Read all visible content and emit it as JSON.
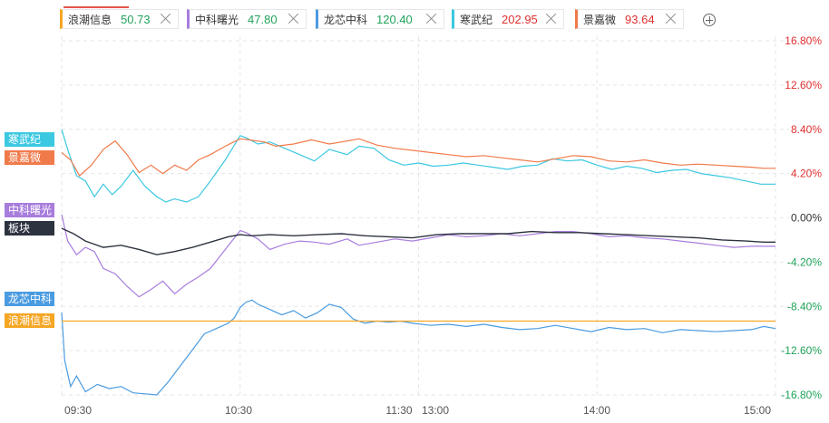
{
  "legend": [
    {
      "name": "浪潮信息",
      "price": "50.73",
      "color": "#f5a623",
      "price_color": "#20a35a"
    },
    {
      "name": "中科曙光",
      "price": "47.80",
      "color": "#a87ddd",
      "price_color": "#20a35a"
    },
    {
      "name": "龙芯中科",
      "price": "120.40",
      "color": "#4a9be0",
      "price_color": "#20a35a"
    },
    {
      "name": "寒武纪",
      "price": "202.95",
      "color": "#3bc8e0",
      "price_color": "#e03030"
    },
    {
      "name": "景嘉微",
      "price": "93.64",
      "color": "#f07a4a",
      "price_color": "#e03030"
    }
  ],
  "add_icon": "plus-circle-icon",
  "close_icon": "close-icon",
  "tags": [
    {
      "label": "寒武纪",
      "color": "#3bc8e0"
    },
    {
      "label": "景嘉微",
      "color": "#f07a4a"
    },
    {
      "label": "中科曙光",
      "color": "#a87ddd"
    },
    {
      "label": "板块",
      "color": "#2e3340"
    },
    {
      "label": "龙芯中科",
      "color": "#4a9be0"
    },
    {
      "label": "浪潮信息",
      "color": "#f5a623"
    }
  ],
  "chart_data": {
    "type": "line",
    "x_ticks": [
      "09:30",
      "10:30",
      "11:30",
      "13:00",
      "14:00",
      "15:00"
    ],
    "y_ticks": [
      "16.80%",
      "12.60%",
      "8.40%",
      "4.20%",
      "0.00%",
      "-4.20%",
      "-8.40%",
      "-12.60%",
      "-16.80%"
    ],
    "y_tick_colors": [
      "#e03030",
      "#e03030",
      "#e03030",
      "#e03030",
      "#333333",
      "#20a35a",
      "#20a35a",
      "#20a35a",
      "#20a35a"
    ],
    "ylim": [
      -16.8,
      16.8
    ],
    "x_unit": "trading minutes since 09:30 (0-240)",
    "series": [
      {
        "name": "寒武纪",
        "color": "#3bc8e0",
        "x": [
          0,
          2,
          5,
          8,
          11,
          14,
          17,
          20,
          24,
          28,
          32,
          35,
          38,
          42,
          46,
          50,
          55,
          60,
          62,
          66,
          70,
          75,
          80,
          85,
          90,
          96,
          100,
          105,
          110,
          115,
          120,
          125,
          130,
          135,
          140,
          145,
          150,
          155,
          160,
          165,
          170,
          175,
          180,
          185,
          190,
          195,
          200,
          205,
          210,
          215,
          220,
          225,
          230,
          235,
          240
        ],
        "y": [
          8.4,
          6.5,
          4.0,
          3.5,
          2.0,
          3.2,
          2.2,
          3.0,
          4.5,
          3.0,
          2.0,
          1.5,
          1.8,
          1.5,
          2.0,
          3.5,
          5.5,
          7.8,
          7.6,
          7.0,
          7.2,
          6.6,
          6.0,
          5.4,
          6.5,
          6.0,
          6.8,
          6.6,
          5.5,
          5.0,
          5.2,
          4.9,
          5.0,
          5.2,
          5.0,
          4.8,
          4.6,
          4.9,
          5.0,
          5.6,
          5.4,
          5.5,
          5.0,
          4.6,
          4.9,
          4.7,
          4.3,
          4.5,
          4.6,
          4.2,
          4.0,
          3.8,
          3.5,
          3.2,
          3.2
        ]
      },
      {
        "name": "景嘉微",
        "color": "#f07a4a",
        "x": [
          0,
          3,
          6,
          10,
          14,
          18,
          22,
          26,
          30,
          34,
          38,
          42,
          46,
          50,
          55,
          60,
          63,
          68,
          72,
          78,
          84,
          90,
          96,
          100,
          106,
          112,
          118,
          124,
          130,
          136,
          142,
          148,
          154,
          160,
          166,
          172,
          178,
          184,
          190,
          196,
          202,
          208,
          214,
          220,
          226,
          232,
          236,
          240
        ],
        "y": [
          6.2,
          5.5,
          4.0,
          5.0,
          6.5,
          7.3,
          6.0,
          4.3,
          5.0,
          4.2,
          5.0,
          4.5,
          5.5,
          6.0,
          6.8,
          7.5,
          7.4,
          7.2,
          6.8,
          7.0,
          7.4,
          7.0,
          7.3,
          7.5,
          6.9,
          6.6,
          6.4,
          6.2,
          6.0,
          5.8,
          5.9,
          5.7,
          5.5,
          5.3,
          5.6,
          5.9,
          5.8,
          5.4,
          5.3,
          5.5,
          5.2,
          5.0,
          5.1,
          5.0,
          4.9,
          4.8,
          4.7,
          4.7
        ]
      },
      {
        "name": "中科曙光",
        "color": "#a87ddd",
        "x": [
          0,
          2,
          5,
          8,
          11,
          14,
          18,
          22,
          26,
          30,
          34,
          38,
          42,
          46,
          50,
          55,
          60,
          62,
          66,
          70,
          75,
          80,
          85,
          90,
          96,
          100,
          106,
          112,
          118,
          124,
          130,
          136,
          142,
          148,
          154,
          160,
          166,
          172,
          178,
          184,
          190,
          196,
          202,
          208,
          214,
          220,
          226,
          232,
          236,
          240
        ],
        "y": [
          0.3,
          -2.2,
          -3.5,
          -2.8,
          -3.2,
          -4.8,
          -5.3,
          -6.5,
          -7.5,
          -6.8,
          -6.0,
          -7.2,
          -6.3,
          -5.6,
          -4.8,
          -3.0,
          -1.2,
          -1.4,
          -2.0,
          -3.0,
          -2.5,
          -2.2,
          -2.3,
          -2.5,
          -2.0,
          -2.6,
          -2.3,
          -2.0,
          -2.2,
          -1.9,
          -1.6,
          -1.8,
          -1.7,
          -1.5,
          -1.7,
          -1.5,
          -1.3,
          -1.3,
          -1.5,
          -1.8,
          -1.7,
          -1.9,
          -2.0,
          -2.2,
          -2.4,
          -2.6,
          -2.8,
          -2.7,
          -2.7,
          -2.7
        ]
      },
      {
        "name": "板块",
        "color": "#2e3340",
        "x": [
          0,
          4,
          8,
          14,
          20,
          26,
          32,
          38,
          44,
          50,
          56,
          60,
          64,
          70,
          78,
          86,
          94,
          102,
          110,
          118,
          126,
          134,
          142,
          150,
          158,
          166,
          174,
          182,
          190,
          198,
          206,
          214,
          222,
          230,
          236,
          240
        ],
        "y": [
          -1.0,
          -1.5,
          -2.2,
          -2.8,
          -2.6,
          -3.0,
          -3.5,
          -3.2,
          -2.8,
          -2.3,
          -1.8,
          -1.6,
          -1.7,
          -1.6,
          -1.7,
          -1.6,
          -1.5,
          -1.7,
          -1.8,
          -1.9,
          -1.6,
          -1.5,
          -1.5,
          -1.5,
          -1.3,
          -1.4,
          -1.4,
          -1.5,
          -1.6,
          -1.7,
          -1.8,
          -1.9,
          -2.1,
          -2.2,
          -2.3,
          -2.3
        ]
      },
      {
        "name": "龙芯中科",
        "color": "#4a9be0",
        "x": [
          0,
          1,
          3,
          5,
          8,
          12,
          16,
          20,
          24,
          28,
          32,
          36,
          40,
          44,
          48,
          52,
          56,
          58,
          60,
          62,
          64,
          66,
          70,
          74,
          78,
          82,
          86,
          90,
          94,
          98,
          102,
          106,
          110,
          114,
          118,
          124,
          130,
          136,
          142,
          148,
          154,
          160,
          166,
          172,
          178,
          184,
          190,
          196,
          202,
          208,
          214,
          220,
          226,
          232,
          236,
          240
        ],
        "y": [
          -9.0,
          -13.5,
          -16.0,
          -15.0,
          -16.5,
          -15.8,
          -16.2,
          -16.0,
          -16.6,
          -16.7,
          -16.8,
          -15.5,
          -14.0,
          -12.5,
          -11.0,
          -10.5,
          -10.0,
          -9.5,
          -8.5,
          -8.0,
          -7.8,
          -8.2,
          -8.7,
          -9.2,
          -8.8,
          -9.5,
          -9.0,
          -8.2,
          -8.5,
          -9.6,
          -10.0,
          -9.8,
          -9.9,
          -9.8,
          -10.0,
          -10.2,
          -10.1,
          -10.3,
          -10.1,
          -10.4,
          -10.6,
          -10.5,
          -10.2,
          -10.5,
          -10.8,
          -10.4,
          -10.6,
          -10.5,
          -10.9,
          -10.6,
          -10.7,
          -10.8,
          -10.7,
          -10.6,
          -10.3,
          -10.5
        ]
      },
      {
        "name": "浪潮信息",
        "color": "#f5a623",
        "x": [
          0,
          240
        ],
        "y": [
          -9.8,
          -9.8
        ]
      }
    ]
  }
}
